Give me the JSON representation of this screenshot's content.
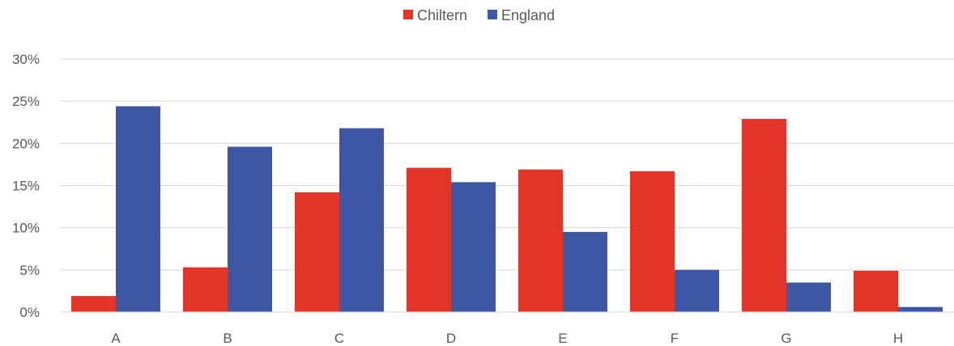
{
  "chart_data": {
    "type": "bar",
    "title": "",
    "xlabel": "",
    "ylabel": "",
    "categories": [
      "A",
      "B",
      "C",
      "D",
      "E",
      "F",
      "G",
      "H"
    ],
    "series": [
      {
        "name": "Chiltern",
        "color": "#e23427",
        "values": [
          1.9,
          5.3,
          14.2,
          17.1,
          16.9,
          16.7,
          22.9,
          4.9
        ]
      },
      {
        "name": "England",
        "color": "#3c58a4",
        "values": [
          24.4,
          19.6,
          21.8,
          15.4,
          9.5,
          5.0,
          3.5,
          0.6
        ]
      }
    ],
    "ylim": [
      0,
      30
    ],
    "yticks": [
      0,
      5,
      10,
      15,
      20,
      25,
      30
    ],
    "ytick_labels": [
      "0%",
      "5%",
      "10%",
      "15%",
      "20%",
      "25%",
      "30%"
    ],
    "grid": true,
    "legend_position": "top-center"
  }
}
